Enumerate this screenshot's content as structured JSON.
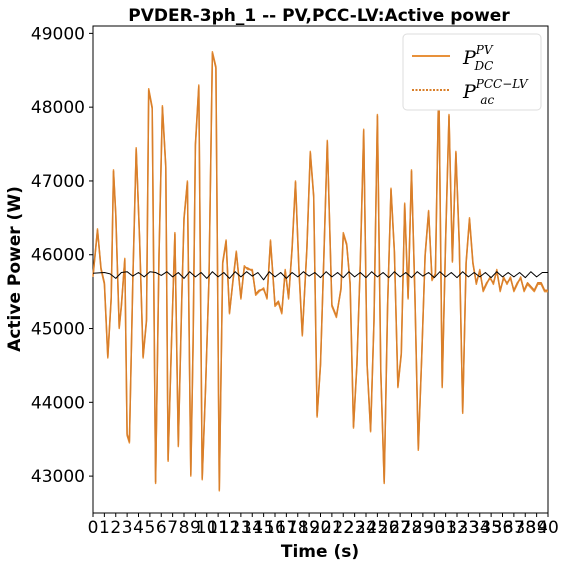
{
  "chart_data": {
    "type": "line",
    "title": "PVDER-3ph_1 -- PV,PCC-LV:Active power",
    "xlabel": "Time (s)",
    "ylabel": "Active Power (W)",
    "xlim": [
      0,
      40
    ],
    "ylim": [
      42500,
      49100
    ],
    "x_ticks": [
      "0",
      "1",
      "2",
      "3",
      "4",
      "5",
      "6",
      "7",
      "8",
      "9",
      "10",
      "11",
      "12",
      "13",
      "14",
      "15",
      "16",
      "17",
      "18",
      "19",
      "20",
      "21",
      "22",
      "23",
      "24",
      "25",
      "26",
      "27",
      "28",
      "29",
      "30",
      "31",
      "32",
      "33",
      "34",
      "35",
      "36",
      "37",
      "38",
      "39",
      "40"
    ],
    "y_ticks": [
      43000,
      44000,
      45000,
      46000,
      47000,
      48000,
      49000
    ],
    "grid": false,
    "legend_position": "top-right",
    "legend": [
      {
        "main": "P",
        "sup": "PV",
        "sub": "DC",
        "color": "#e8913a",
        "style": "solid"
      },
      {
        "main": "P",
        "sup": "PCC−LV",
        "sub": "ac",
        "color": "#d97f2a",
        "style": "dotted"
      }
    ],
    "series": [
      {
        "color": "#e8913a",
        "x": [
          0,
          0.4,
          0.7,
          1.0,
          1.3,
          1.6,
          1.8,
          2.0,
          2.3,
          2.5,
          2.8,
          3.0,
          3.2,
          3.5,
          3.8,
          4.1,
          4.4,
          4.7,
          4.9,
          5.2,
          5.5,
          5.8,
          6.1,
          6.4,
          6.6,
          6.9,
          7.2,
          7.5,
          7.8,
          8.0,
          8.3,
          8.6,
          8.8,
          9.0,
          9.3,
          9.6,
          9.9,
          10.2,
          10.5,
          10.8,
          11.1,
          11.4,
          11.7,
          12.0,
          12.3,
          12.6,
          13.0,
          13.3,
          13.6,
          14.0,
          14.3,
          14.6,
          15.0,
          15.3,
          15.6,
          16.0,
          16.3,
          16.6,
          16.9,
          17.2,
          17.5,
          17.8,
          18.1,
          18.4,
          18.8,
          19.1,
          19.4,
          19.7,
          20.0,
          20.3,
          20.6,
          21.0,
          21.4,
          21.8,
          22.0,
          22.3,
          22.6,
          22.9,
          23.2,
          23.5,
          23.8,
          24.1,
          24.4,
          24.7,
          25.0,
          25.3,
          25.6,
          25.9,
          26.2,
          26.5,
          26.8,
          27.1,
          27.4,
          27.7,
          28.0,
          28.3,
          28.6,
          28.9,
          29.2,
          29.5,
          29.8,
          30.1,
          30.4,
          30.7,
          31.0,
          31.3,
          31.6,
          31.9,
          32.2,
          32.5,
          32.8,
          33.1,
          33.4,
          33.7,
          34.0,
          34.3,
          34.6,
          34.9,
          35.2,
          35.5,
          35.8,
          36.1,
          36.4,
          36.7,
          37.0,
          37.3,
          37.6,
          37.9,
          38.2,
          38.5,
          38.8,
          39.1,
          39.4,
          39.7,
          40.0
        ],
        "values": [
          45700,
          46350,
          45800,
          45600,
          44600,
          45400,
          47150,
          46550,
          45000,
          45300,
          45950,
          43550,
          43450,
          45650,
          47450,
          46200,
          44600,
          45100,
          48250,
          48000,
          42900,
          46000,
          48020,
          47200,
          43200,
          44800,
          46300,
          43400,
          45350,
          46500,
          47000,
          43000,
          44800,
          47500,
          48300,
          42950,
          44200,
          45700,
          48750,
          48550,
          42800,
          45900,
          46200,
          45200,
          45650,
          46050,
          45400,
          45850,
          45800,
          45800,
          45450,
          45500,
          45550,
          45400,
          46200,
          45300,
          45350,
          45200,
          45800,
          45400,
          46100,
          47000,
          45800,
          44900,
          46100,
          47400,
          46800,
          43800,
          44500,
          46000,
          47550,
          45300,
          45150,
          45550,
          46300,
          46150,
          45600,
          43650,
          44500,
          45900,
          47700,
          44500,
          43600,
          45100,
          47900,
          44400,
          42900,
          45300,
          46900,
          46050,
          44200,
          44650,
          46700,
          45400,
          47150,
          45450,
          43350,
          44600,
          46000,
          46600,
          45650,
          45750,
          48400,
          44200,
          46200,
          47900,
          45900,
          47400,
          46150,
          43850,
          45900,
          46500,
          45900,
          45600,
          45800,
          45500,
          45600,
          45700,
          45600,
          45800,
          45500,
          45700,
          45600,
          45700,
          45500,
          45600,
          45700,
          45500,
          45600,
          45550,
          45500,
          45600,
          45600,
          45500,
          45500
        ]
      },
      {
        "color": "#d97f2a",
        "x": [
          0,
          0.4,
          0.7,
          1.0,
          1.3,
          1.6,
          1.8,
          2.0,
          2.3,
          2.5,
          2.8,
          3.0,
          3.2,
          3.5,
          3.8,
          4.1,
          4.4,
          4.7,
          4.9,
          5.2,
          5.5,
          5.8,
          6.1,
          6.4,
          6.6,
          6.9,
          7.2,
          7.5,
          7.8,
          8.0,
          8.3,
          8.6,
          8.8,
          9.0,
          9.3,
          9.6,
          9.9,
          10.2,
          10.5,
          10.8,
          11.1,
          11.4,
          11.7,
          12.0,
          12.3,
          12.6,
          13.0,
          13.3,
          13.6,
          14.0,
          14.3,
          14.6,
          15.0,
          15.3,
          15.6,
          16.0,
          16.3,
          16.6,
          16.9,
          17.2,
          17.5,
          17.8,
          18.1,
          18.4,
          18.8,
          19.1,
          19.4,
          19.7,
          20.0,
          20.3,
          20.6,
          21.0,
          21.4,
          21.8,
          22.0,
          22.3,
          22.6,
          22.9,
          23.2,
          23.5,
          23.8,
          24.1,
          24.4,
          24.7,
          25.0,
          25.3,
          25.6,
          25.9,
          26.2,
          26.5,
          26.8,
          27.1,
          27.4,
          27.7,
          28.0,
          28.3,
          28.6,
          28.9,
          29.2,
          29.5,
          29.8,
          30.1,
          30.4,
          30.7,
          31.0,
          31.3,
          31.6,
          31.9,
          32.2,
          32.5,
          32.8,
          33.1,
          33.4,
          33.7,
          34.0,
          34.3,
          34.6,
          34.9,
          35.2,
          35.5,
          35.8,
          36.1,
          36.4,
          36.7,
          37.0,
          37.3,
          37.6,
          37.9,
          38.2,
          38.5,
          38.8,
          39.1,
          39.4,
          39.7,
          40.0
        ],
        "values": [
          45720,
          46330,
          45820,
          45620,
          44620,
          45420,
          47130,
          46530,
          45020,
          45320,
          45930,
          43570,
          43470,
          45630,
          47430,
          46220,
          44620,
          45120,
          48230,
          47980,
          42920,
          45980,
          48000,
          47180,
          43220,
          44820,
          46280,
          43420,
          45370,
          46480,
          46980,
          43020,
          44820,
          47480,
          48280,
          42970,
          44220,
          45680,
          48730,
          48530,
          42820,
          45880,
          46180,
          45220,
          45630,
          46030,
          45420,
          45830,
          45820,
          45780,
          45470,
          45520,
          45530,
          45420,
          46180,
          45320,
          45370,
          45220,
          45780,
          45420,
          46080,
          46980,
          45820,
          44920,
          46080,
          47380,
          46780,
          43820,
          44520,
          45980,
          47530,
          45320,
          45170,
          45530,
          46280,
          46130,
          45620,
          43670,
          44520,
          45880,
          47680,
          44520,
          43620,
          45120,
          47880,
          44420,
          42920,
          45320,
          46880,
          46030,
          44220,
          44670,
          46680,
          45420,
          47130,
          45470,
          43370,
          44620,
          45980,
          46580,
          45670,
          45730,
          48380,
          44220,
          46180,
          47880,
          45920,
          47380,
          46130,
          43870,
          45880,
          46480,
          45880,
          45620,
          45780,
          45520,
          45620,
          45680,
          45620,
          45780,
          45520,
          45680,
          45620,
          45680,
          45520,
          45620,
          45680,
          45520,
          45620,
          45570,
          45520,
          45620,
          45620,
          45520,
          45520
        ]
      },
      {
        "color": "#000000",
        "x": [
          0,
          1,
          1.5,
          2,
          2.5,
          3,
          3.5,
          4,
          4.5,
          5,
          5.5,
          6,
          6.5,
          7,
          7.5,
          8,
          8.5,
          9,
          9.5,
          10,
          10.5,
          11,
          11.5,
          12,
          12.5,
          13,
          13.5,
          14,
          14.5,
          15,
          15.5,
          16,
          16.5,
          17,
          17.5,
          18,
          18.5,
          19,
          19.5,
          20,
          20.5,
          21,
          21.5,
          22,
          22.5,
          23,
          23.5,
          24,
          24.5,
          25,
          25.5,
          26,
          26.5,
          27,
          27.5,
          28,
          28.5,
          29,
          29.5,
          30,
          30.5,
          31,
          31.5,
          32,
          32.5,
          33,
          33.5,
          34,
          34.5,
          35,
          35.5,
          36,
          36.5,
          37,
          37.5,
          38,
          38.5,
          39,
          39.5,
          40
        ],
        "values": [
          45750,
          45760,
          45740,
          45680,
          45760,
          45770,
          45710,
          45760,
          45700,
          45770,
          45760,
          45720,
          45770,
          45700,
          45760,
          45680,
          45770,
          45700,
          45760,
          45680,
          45770,
          45700,
          45760,
          45680,
          45770,
          45700,
          45770,
          45710,
          45760,
          45660,
          45770,
          45700,
          45760,
          45680,
          45760,
          45700,
          45770,
          45710,
          45760,
          45690,
          45770,
          45700,
          45760,
          45690,
          45770,
          45700,
          45760,
          45690,
          45770,
          45700,
          45760,
          45690,
          45770,
          45700,
          45760,
          45690,
          45770,
          45710,
          45760,
          45690,
          45770,
          45700,
          45760,
          45690,
          45770,
          45700,
          45760,
          45700,
          45760,
          45690,
          45770,
          45700,
          45760,
          45700,
          45760,
          45690,
          45770,
          45700,
          45760,
          45760
        ]
      }
    ]
  }
}
